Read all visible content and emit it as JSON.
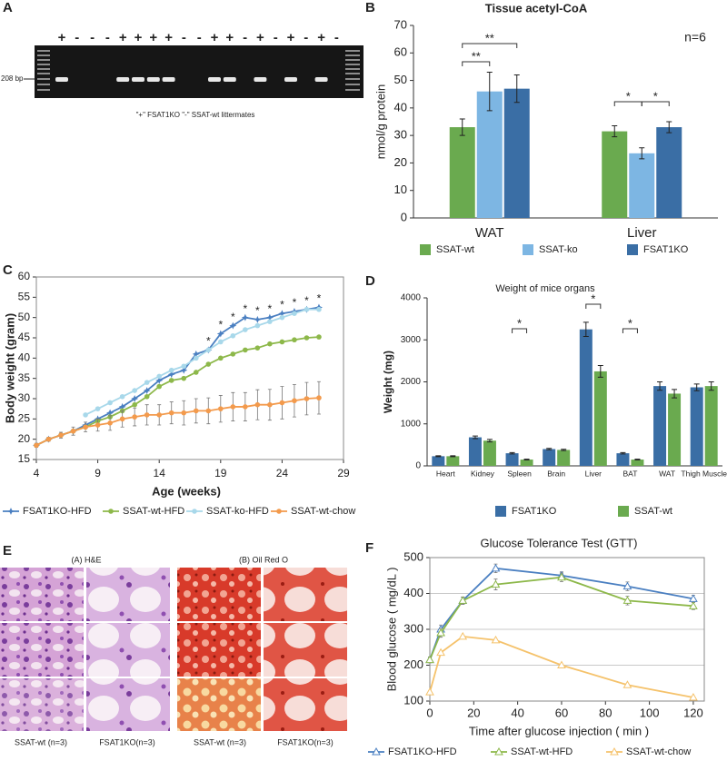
{
  "figure": {
    "panel_labels": [
      "A",
      "B",
      "C",
      "D",
      "E",
      "F"
    ],
    "gel": {
      "band_size": "208 bp",
      "lanes": [
        "+",
        "-",
        "-",
        "-",
        "+",
        "+",
        "+",
        "+",
        "-",
        "-",
        "+",
        "+",
        "-",
        "+",
        "-",
        "+",
        "-",
        "+",
        "-"
      ],
      "note": "\"+\" FSAT1KO  \"-\" SSAT-wt littermates"
    },
    "histology": {
      "stains": [
        "(A) H&E",
        "(B) Oil Red O"
      ],
      "groups": [
        "SSAT-wt (n=3)",
        "FSAT1KO(n=3)",
        "SSAT-wt (n=3)",
        "FSAT1KO(n=3)"
      ]
    }
  },
  "chart_data": [
    {
      "type": "bar",
      "title": "Tissue acetyl-CoA",
      "ylabel": "nmol/g protein",
      "annotation": "n=6",
      "categories": [
        "WAT",
        "Liver"
      ],
      "ylim": [
        0,
        70
      ],
      "yticks": [
        0,
        10,
        20,
        30,
        40,
        50,
        60,
        70
      ],
      "series": [
        {
          "name": "SSAT-wt",
          "color": "#6aaa4f",
          "values": [
            33,
            31.5
          ],
          "errors": [
            3,
            2
          ]
        },
        {
          "name": "SSAT-ko",
          "color": "#7db6e3",
          "values": [
            46,
            23.5
          ],
          "errors": [
            7,
            2
          ]
        },
        {
          "name": "FSAT1KO",
          "color": "#3a6ea5",
          "values": [
            47,
            33
          ],
          "errors": [
            5,
            2
          ]
        }
      ],
      "significance": [
        "**",
        "**",
        "*",
        "*"
      ]
    },
    {
      "type": "line",
      "xlabel": "Age (weeks)",
      "ylabel": "Body weight (gram)",
      "x": [
        4,
        5,
        6,
        7,
        8,
        9,
        10,
        11,
        12,
        13,
        14,
        15,
        16,
        17,
        18,
        19,
        20,
        21,
        22,
        23,
        24,
        25,
        26,
        27
      ],
      "xlim": [
        4,
        29
      ],
      "xticks": [
        4,
        9,
        14,
        19,
        24,
        29
      ],
      "ylim": [
        15,
        60
      ],
      "yticks": [
        15,
        20,
        25,
        30,
        35,
        40,
        45,
        50,
        55,
        60
      ],
      "grid": false,
      "series": [
        {
          "name": "FSAT1KO-HFD",
          "color": "#4a7fc1",
          "marker": "star",
          "values": [
            18.5,
            20,
            21,
            22,
            23.5,
            25,
            26.5,
            28,
            30,
            32,
            34.5,
            36,
            37,
            41,
            42,
            46,
            48,
            50,
            49.5,
            50,
            51,
            51.5,
            52,
            52.5
          ]
        },
        {
          "name": "SSAT-wt-HFD",
          "color": "#8db84a",
          "marker": "circle",
          "values": [
            18.5,
            20,
            21,
            22,
            23,
            24.5,
            25.5,
            27,
            28.5,
            30.5,
            33,
            34.5,
            35,
            36.5,
            38.5,
            40,
            41,
            42,
            42.5,
            43.5,
            44,
            44.5,
            45,
            45.2
          ]
        },
        {
          "name": "SSAT-ko-HFD",
          "color": "#a8d8ea",
          "marker": "circle",
          "values": [
            null,
            null,
            null,
            null,
            26,
            27.5,
            29,
            30.5,
            32,
            34,
            35.5,
            37,
            38,
            40,
            42,
            44,
            45.5,
            47,
            48,
            49,
            50,
            51,
            52,
            52
          ]
        },
        {
          "name": "SSAT-wt-chow",
          "color": "#f39a4c",
          "marker": "circle",
          "values": [
            18.5,
            20,
            21,
            22,
            23,
            23.5,
            24,
            25,
            25.5,
            26,
            26,
            26.5,
            26.5,
            27,
            27,
            27.5,
            28,
            28,
            28.5,
            28.5,
            29,
            29.5,
            30,
            30.2
          ],
          "errors": [
            0.5,
            0.5,
            0.7,
            1,
            1.2,
            1.5,
            1.8,
            2,
            2.2,
            2.5,
            2.5,
            2.7,
            3,
            3,
            3.2,
            3.3,
            3.5,
            3.5,
            3.7,
            3.8,
            4,
            4,
            4,
            4
          ]
        }
      ],
      "annotations": [
        {
          "text": "*",
          "x": 18
        },
        {
          "text": "*",
          "x": 19
        },
        {
          "text": "*",
          "x": 20
        },
        {
          "text": "*",
          "x": 21
        },
        {
          "text": "*",
          "x": 22
        },
        {
          "text": "*",
          "x": 23
        },
        {
          "text": "*",
          "x": 24
        },
        {
          "text": "*",
          "x": 25
        },
        {
          "text": "*",
          "x": 26
        },
        {
          "text": "*",
          "x": 27
        }
      ]
    },
    {
      "type": "bar",
      "title": "Weight of mice organs",
      "ylabel": "Weight (mg)",
      "categories": [
        "Heart",
        "Kidney",
        "Spleen",
        "Brain",
        "Liver",
        "BAT",
        "WAT",
        "Thigh Muscle"
      ],
      "ylim": [
        0,
        4000
      ],
      "yticks": [
        0,
        1000,
        2000,
        3000,
        4000
      ],
      "series": [
        {
          "name": "FSAT1KO",
          "color": "#3a6ea5",
          "values": [
            230,
            680,
            300,
            400,
            3250,
            300,
            1900,
            1870
          ],
          "errors": [
            10,
            30,
            15,
            15,
            170,
            15,
            100,
            80
          ]
        },
        {
          "name": "SSAT-wt",
          "color": "#6aaa4f",
          "values": [
            230,
            600,
            150,
            380,
            2250,
            150,
            1720,
            1900
          ],
          "errors": [
            10,
            30,
            10,
            15,
            140,
            10,
            100,
            100
          ]
        }
      ],
      "significance": [
        "*",
        "*",
        "*"
      ]
    },
    {
      "type": "line",
      "title": "Glucose Tolerance Test (GTT)",
      "xlabel": "Time after glucose injection ( min )",
      "ylabel": "Blood glucose ( mg/dL )",
      "x": [
        0,
        5,
        15,
        30,
        60,
        90,
        120
      ],
      "xlim": [
        0,
        125
      ],
      "xticks": [
        0,
        20,
        40,
        60,
        80,
        100,
        120
      ],
      "ylim": [
        100,
        500
      ],
      "yticks": [
        100,
        200,
        300,
        400,
        500
      ],
      "grid": true,
      "series": [
        {
          "name": "FSAT1KO-HFD",
          "color": "#4a7fc1",
          "marker": "open-triangle",
          "values": [
            215,
            300,
            380,
            470,
            450,
            420,
            385
          ],
          "errors": [
            8,
            12,
            10,
            12,
            10,
            12,
            10
          ]
        },
        {
          "name": "SSAT-wt-HFD",
          "color": "#8db84a",
          "marker": "open-triangle",
          "values": [
            215,
            290,
            380,
            425,
            445,
            380,
            365
          ],
          "errors": [
            8,
            12,
            10,
            15,
            12,
            12,
            10
          ]
        },
        {
          "name": "SSAT-wt-chow",
          "color": "#f5c26b",
          "marker": "open-triangle",
          "values": [
            125,
            235,
            280,
            270,
            200,
            145,
            110
          ]
        }
      ]
    }
  ]
}
